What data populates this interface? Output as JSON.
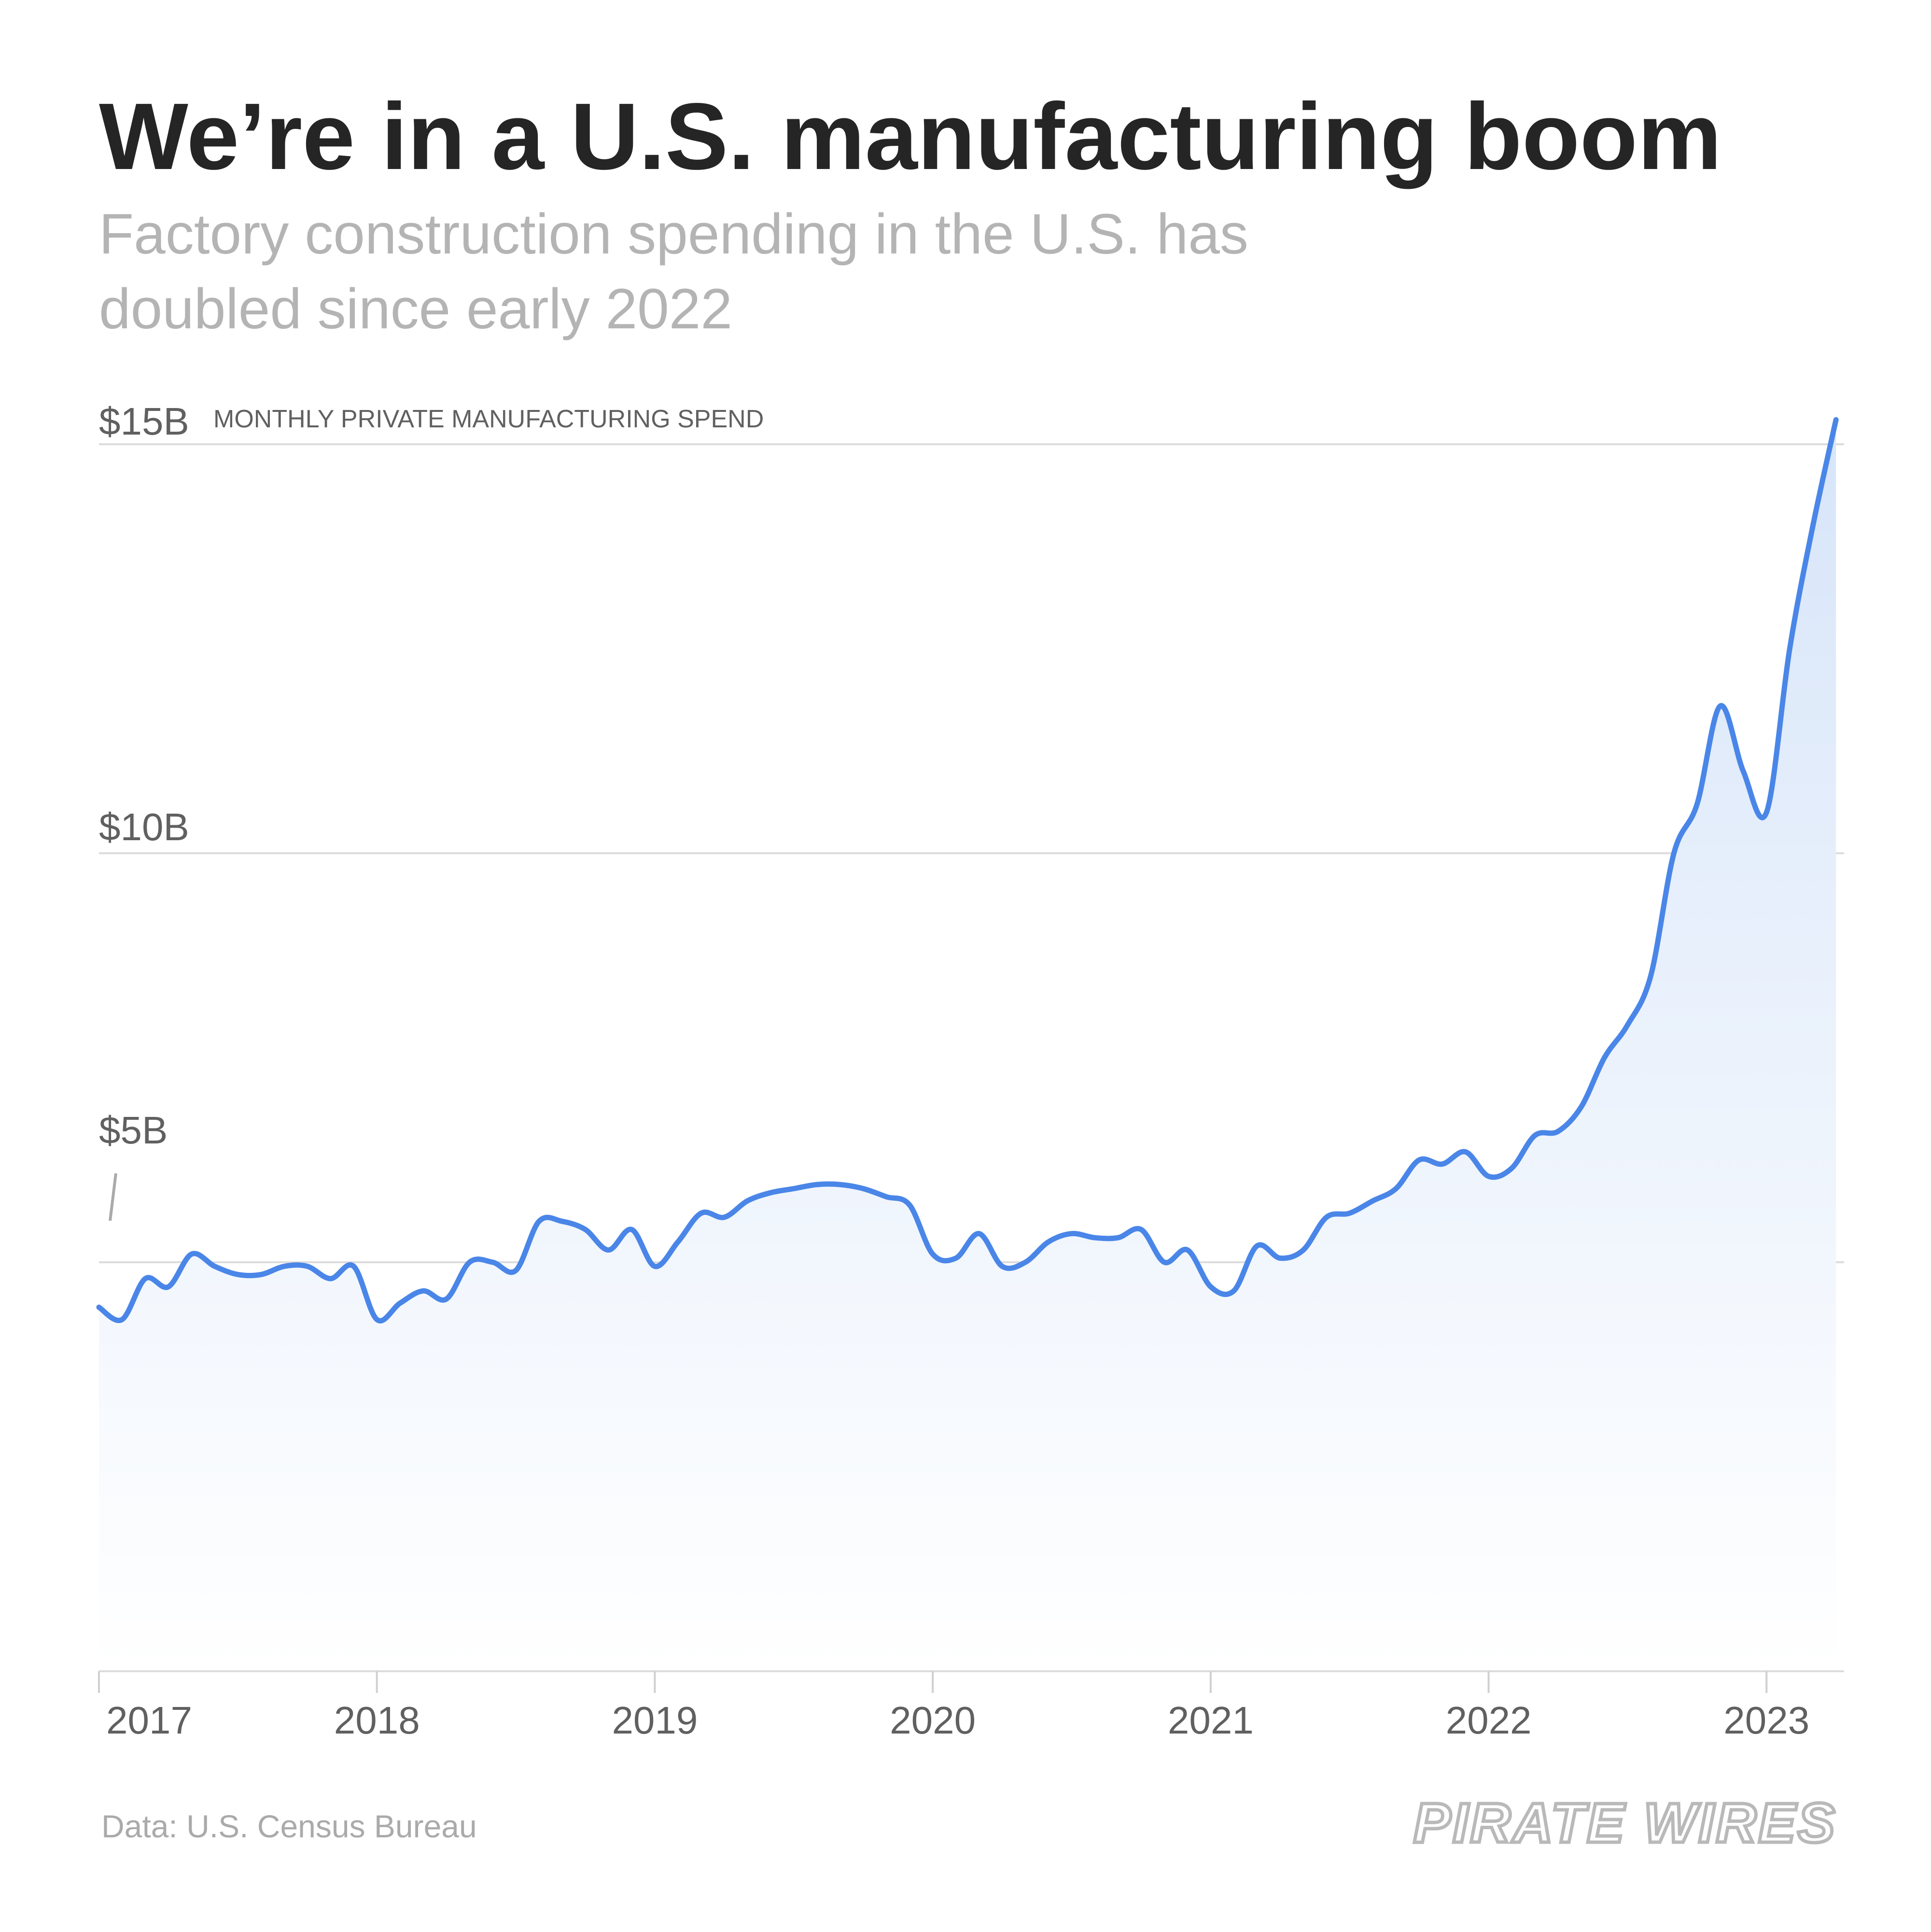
{
  "header": {
    "title": "We’re in a U.S. manufacturing boom",
    "subtitle_line1": "Factory construction spending in the U.S. has",
    "subtitle_line2": "doubled since early 2022"
  },
  "footer": {
    "source": "Data: U.S. Census Bureau",
    "logo_text": "PIRATE WIRES"
  },
  "colors": {
    "line": "#4a86e8",
    "fill_top": "#d7e5f9",
    "fill_bottom": "#ffffff",
    "grid": "#dcdcdc",
    "title": "#252525",
    "subtitle": "#b4b4b4",
    "axis_text": "#606060",
    "source": "#aaaaaa",
    "logo": "#b9b9b9"
  },
  "chart_data": {
    "type": "area",
    "title": "We’re in a U.S. manufacturing boom",
    "subtitle": "Factory construction spending in the U.S. has doubled since early 2022",
    "ylabel": "MONTHLY PRIVATE MANUFACTURING SPEND",
    "xlabel": "",
    "units": "billions USD",
    "ylim": [
      0,
      15
    ],
    "y_ticks": [
      {
        "value": 15,
        "label": "$15B"
      },
      {
        "value": 10,
        "label": "$10B"
      },
      {
        "value": 5,
        "label": "$5B"
      }
    ],
    "x_start": "2017-01",
    "x_end": "2023-04",
    "x_ticks": [
      {
        "value": "2017-01",
        "label": "2017"
      },
      {
        "value": "2018-01",
        "label": "2018"
      },
      {
        "value": "2019-01",
        "label": "2019"
      },
      {
        "value": "2020-01",
        "label": "2020"
      },
      {
        "value": "2021-01",
        "label": "2021"
      },
      {
        "value": "2022-01",
        "label": "2022"
      },
      {
        "value": "2023-01",
        "label": "2023"
      }
    ],
    "grid": true,
    "legend": "none",
    "series": [
      {
        "x": [
          "2017-01",
          "2017-02",
          "2017-03",
          "2017-04",
          "2017-05",
          "2017-06",
          "2017-07",
          "2017-08",
          "2017-09",
          "2017-10",
          "2017-11",
          "2017-12",
          "2018-01",
          "2018-02",
          "2018-03",
          "2018-04",
          "2018-05",
          "2018-06",
          "2018-07",
          "2018-08",
          "2018-09",
          "2018-10",
          "2018-11",
          "2018-12",
          "2019-01",
          "2019-02",
          "2019-03",
          "2019-04",
          "2019-05",
          "2019-06",
          "2019-07",
          "2019-08",
          "2019-09",
          "2019-10",
          "2019-11",
          "2019-12",
          "2020-01",
          "2020-02",
          "2020-03",
          "2020-04",
          "2020-05",
          "2020-06",
          "2020-07",
          "2020-08",
          "2020-09",
          "2020-10",
          "2020-11",
          "2020-12",
          "2021-01",
          "2021-02",
          "2021-03",
          "2021-04",
          "2021-05",
          "2021-06",
          "2021-07",
          "2021-08",
          "2021-09",
          "2021-10",
          "2021-11",
          "2021-12",
          "2022-01",
          "2022-02",
          "2022-03",
          "2022-04",
          "2022-05",
          "2022-06",
          "2022-07",
          "2022-08",
          "2022-09",
          "2022-10",
          "2022-11",
          "2022-12",
          "2023-01",
          "2023-02",
          "2023-03",
          "2023-04"
        ],
        "values": [
          4.45,
          4.3,
          4.8,
          4.7,
          5.1,
          4.95,
          4.85,
          4.85,
          4.95,
          4.95,
          4.8,
          4.95,
          4.3,
          4.5,
          4.65,
          4.55,
          5.0,
          5.0,
          4.9,
          5.5,
          5.5,
          5.4,
          5.15,
          5.4,
          4.95,
          5.25,
          5.6,
          5.55,
          5.75,
          5.85,
          5.9,
          5.95,
          5.95,
          5.9,
          5.8,
          5.7,
          5.1,
          5.05,
          5.35,
          4.95,
          5.0,
          5.25,
          5.35,
          5.3,
          5.3,
          5.4,
          5.0,
          5.15,
          4.7,
          4.65,
          5.2,
          5.05,
          5.15,
          5.55,
          5.6,
          5.75,
          5.9,
          6.25,
          6.2,
          6.35,
          6.05,
          6.15,
          6.55,
          6.6,
          6.9,
          7.5,
          7.9,
          8.5,
          10.0,
          10.6,
          11.8,
          11.0,
          10.5,
          12.5,
          14.0,
          15.3
        ]
      }
    ]
  }
}
